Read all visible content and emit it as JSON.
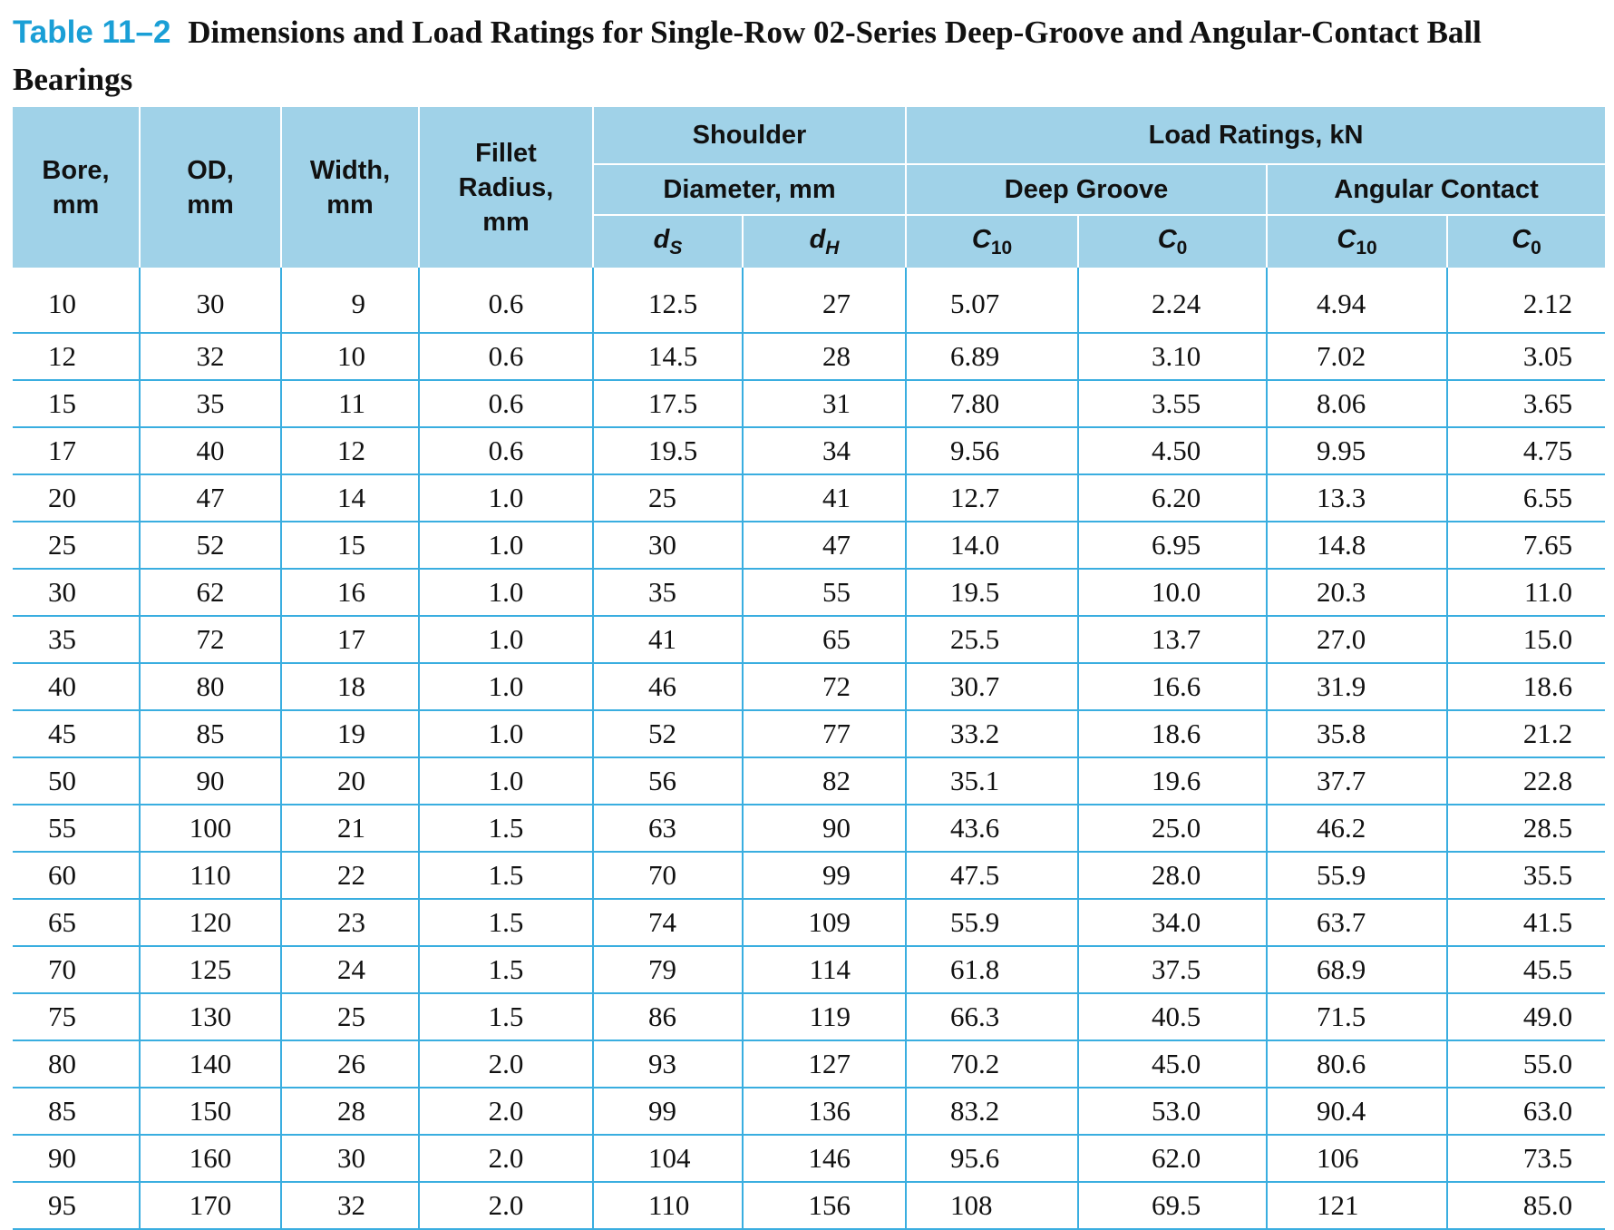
{
  "caption": {
    "number": "Table 11–2",
    "title": "Dimensions and Load Ratings for Single-Row 02-Series Deep-Groove and Angular-Contact Ball Bearings"
  },
  "headers": {
    "bore": [
      "Bore,",
      "mm"
    ],
    "od": [
      "OD,",
      "mm"
    ],
    "width": [
      "Width,",
      "mm"
    ],
    "fillet": [
      "Fillet",
      "Radius,",
      "mm"
    ],
    "shoulder": "Shoulder",
    "diameter": "Diameter, mm",
    "load_ratings": "Load Ratings, kN",
    "deep_groove": "Deep Groove",
    "angular_contact": "Angular Contact",
    "ds": {
      "base": "d",
      "sub": "S"
    },
    "dh": {
      "base": "d",
      "sub": "H"
    },
    "c10": {
      "base": "C",
      "sub": "10"
    },
    "c0": {
      "base": "C",
      "sub": "0"
    }
  },
  "rows": [
    [
      "10",
      "30",
      "9",
      "0.6",
      "12.5",
      "27",
      "5.07",
      "2.24",
      "4.94",
      "2.12"
    ],
    [
      "12",
      "32",
      "10",
      "0.6",
      "14.5",
      "28",
      "6.89",
      "3.10",
      "7.02",
      "3.05"
    ],
    [
      "15",
      "35",
      "11",
      "0.6",
      "17.5",
      "31",
      "7.80",
      "3.55",
      "8.06",
      "3.65"
    ],
    [
      "17",
      "40",
      "12",
      "0.6",
      "19.5",
      "34",
      "9.56",
      "4.50",
      "9.95",
      "4.75"
    ],
    [
      "20",
      "47",
      "14",
      "1.0",
      "25",
      "41",
      "12.7",
      "6.20",
      "13.3",
      "6.55"
    ],
    [
      "25",
      "52",
      "15",
      "1.0",
      "30",
      "47",
      "14.0",
      "6.95",
      "14.8",
      "7.65"
    ],
    [
      "30",
      "62",
      "16",
      "1.0",
      "35",
      "55",
      "19.5",
      "10.0",
      "20.3",
      "11.0"
    ],
    [
      "35",
      "72",
      "17",
      "1.0",
      "41",
      "65",
      "25.5",
      "13.7",
      "27.0",
      "15.0"
    ],
    [
      "40",
      "80",
      "18",
      "1.0",
      "46",
      "72",
      "30.7",
      "16.6",
      "31.9",
      "18.6"
    ],
    [
      "45",
      "85",
      "19",
      "1.0",
      "52",
      "77",
      "33.2",
      "18.6",
      "35.8",
      "21.2"
    ],
    [
      "50",
      "90",
      "20",
      "1.0",
      "56",
      "82",
      "35.1",
      "19.6",
      "37.7",
      "22.8"
    ],
    [
      "55",
      "100",
      "21",
      "1.5",
      "63",
      "90",
      "43.6",
      "25.0",
      "46.2",
      "28.5"
    ],
    [
      "60",
      "110",
      "22",
      "1.5",
      "70",
      "99",
      "47.5",
      "28.0",
      "55.9",
      "35.5"
    ],
    [
      "65",
      "120",
      "23",
      "1.5",
      "74",
      "109",
      "55.9",
      "34.0",
      "63.7",
      "41.5"
    ],
    [
      "70",
      "125",
      "24",
      "1.5",
      "79",
      "114",
      "61.8",
      "37.5",
      "68.9",
      "45.5"
    ],
    [
      "75",
      "130",
      "25",
      "1.5",
      "86",
      "119",
      "66.3",
      "40.5",
      "71.5",
      "49.0"
    ],
    [
      "80",
      "140",
      "26",
      "2.0",
      "93",
      "127",
      "70.2",
      "45.0",
      "80.6",
      "55.0"
    ],
    [
      "85",
      "150",
      "28",
      "2.0",
      "99",
      "136",
      "83.2",
      "53.0",
      "90.4",
      "63.0"
    ],
    [
      "90",
      "160",
      "30",
      "2.0",
      "104",
      "146",
      "95.6",
      "62.0",
      "106",
      "73.5"
    ],
    [
      "95",
      "170",
      "32",
      "2.0",
      "110",
      "156",
      "108",
      "69.5",
      "121",
      "85.0"
    ]
  ]
}
